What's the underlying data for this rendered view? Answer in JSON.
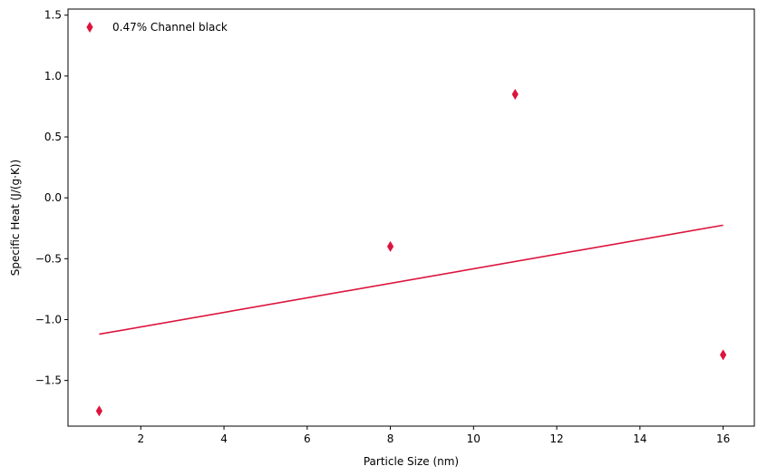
{
  "chart_data": {
    "type": "scatter",
    "title": "",
    "xlabel": "Particle Size (nm)",
    "ylabel": "Specific Heat (J/(g·K))",
    "xlim": [
      0.25,
      16.75
    ],
    "ylim": [
      -1.875,
      1.55
    ],
    "xticks": [
      2,
      4,
      6,
      8,
      10,
      12,
      14,
      16
    ],
    "yticks": [
      -1.5,
      -1.0,
      -0.5,
      0.0,
      0.5,
      1.0,
      1.5
    ],
    "xtick_labels": [
      "2",
      "4",
      "6",
      "8",
      "10",
      "12",
      "14",
      "16"
    ],
    "ytick_labels": [
      "−1.5",
      "−1.0",
      "−0.5",
      "0.0",
      "0.5",
      "1.0",
      "1.5"
    ],
    "grid": false,
    "legend_position": "top-left",
    "series": [
      {
        "name": "0.47% Channel black",
        "color": "#dc143c",
        "marker": "thin-diamond",
        "points": [
          {
            "x": 1,
            "y": -1.75
          },
          {
            "x": 8,
            "y": -0.4
          },
          {
            "x": 11,
            "y": 0.85
          },
          {
            "x": 16,
            "y": -1.29
          }
        ]
      }
    ],
    "trendline": {
      "color": "#dc143c",
      "x": [
        1,
        16
      ],
      "y": [
        -1.12,
        -0.225
      ]
    }
  }
}
